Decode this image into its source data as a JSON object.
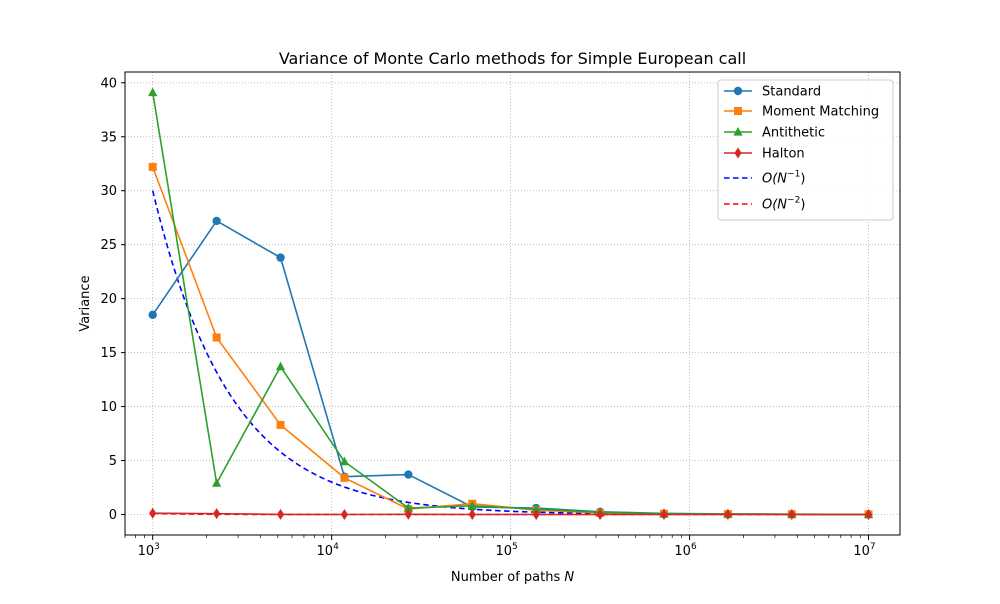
{
  "chart_data": {
    "type": "line",
    "title": "Variance of Monte Carlo methods for Simple European call",
    "xlabel": "Number of paths N",
    "ylabel": "Variance",
    "xscale": "log",
    "xlim": [
      700,
      15000000
    ],
    "ylim": [
      -1.9,
      41.0
    ],
    "grid": true,
    "legend_position": "top-right",
    "x": [
      1000,
      2276,
      5180,
      11788,
      26827,
      61054,
      138950,
      316228,
      719686,
      1637894,
      3727594,
      10000000
    ],
    "x_tick_values": [
      1000,
      10000,
      100000,
      1000000,
      10000000
    ],
    "x_tick_labels": [
      {
        "base": "10",
        "exp": "3"
      },
      {
        "base": "10",
        "exp": "4"
      },
      {
        "base": "10",
        "exp": "5"
      },
      {
        "base": "10",
        "exp": "6"
      },
      {
        "base": "10",
        "exp": "7"
      }
    ],
    "y_ticks": [
      0,
      5,
      10,
      15,
      20,
      25,
      30,
      35,
      40
    ],
    "y_tick_labels": [
      "0",
      "5",
      "10",
      "15",
      "20",
      "25",
      "30",
      "35",
      "40"
    ],
    "series": [
      {
        "name": "Standard",
        "color": "#1f77b4",
        "marker": "circle",
        "dash": "solid",
        "values": [
          18.5,
          27.2,
          23.8,
          3.5,
          3.7,
          0.7,
          0.6,
          0.25,
          0.1,
          0.05,
          0.03,
          0.01
        ]
      },
      {
        "name": "Moment Matching",
        "color": "#ff7f0e",
        "marker": "square",
        "dash": "solid",
        "values": [
          32.2,
          16.4,
          8.3,
          3.4,
          0.5,
          1.0,
          0.4,
          0.15,
          0.06,
          0.03,
          0.02,
          0.01
        ]
      },
      {
        "name": "Antithetic",
        "color": "#2ca02c",
        "marker": "triangle",
        "dash": "solid",
        "values": [
          39.1,
          2.9,
          13.7,
          4.9,
          0.6,
          0.8,
          0.5,
          0.2,
          0.08,
          0.04,
          0.02,
          0.01
        ]
      },
      {
        "name": "Halton",
        "color": "#d62728",
        "marker": "diamond",
        "dash": "solid",
        "values": [
          0.12,
          0.08,
          0.01,
          0.0,
          0.02,
          0.0,
          0.0,
          0.0,
          0.0,
          0.0,
          0.0,
          0.0
        ]
      },
      {
        "name": "O(N^-1)",
        "legend_base": "O(N",
        "legend_exp": "−1",
        "legend_close": ")",
        "color": "#0000ff",
        "marker": "none",
        "dash": "dashed",
        "function": "30000/N"
      },
      {
        "name": "O(N^-2)",
        "legend_base": "O(N",
        "legend_exp": "−2",
        "legend_close": ")",
        "color": "#ff0000",
        "marker": "none",
        "dash": "dashed",
        "function": "100000/N^2"
      }
    ]
  }
}
